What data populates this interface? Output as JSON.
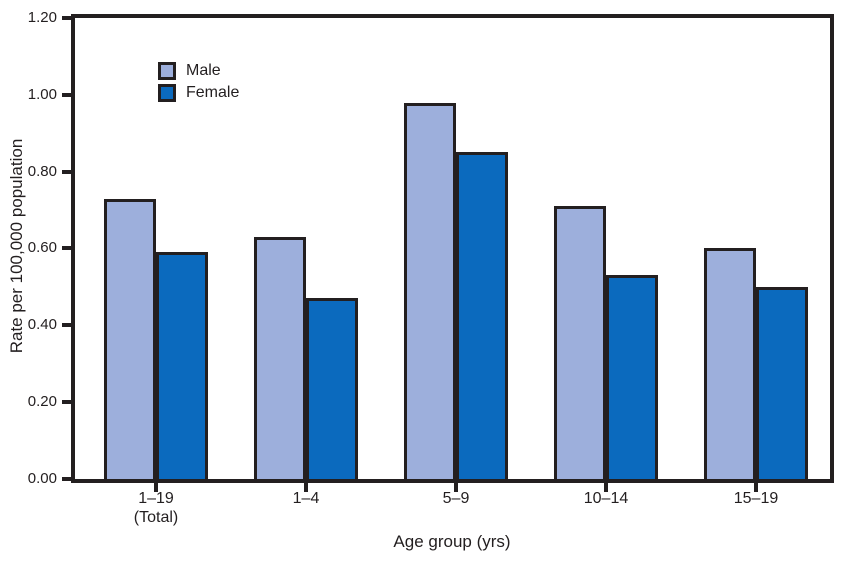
{
  "chart_data": {
    "type": "bar",
    "title": "",
    "xlabel": "Age group (yrs)",
    "ylabel": "Rate per 100,000 population",
    "ylim": [
      0,
      1.2
    ],
    "ytick_step": 0.2,
    "ytick_labels": [
      "0.00",
      "0.20",
      "0.40",
      "0.60",
      "0.80",
      "1.00",
      "1.20"
    ],
    "grid": false,
    "legend_position": "top-left-inside",
    "categories": [
      {
        "label": "1–19",
        "sublabel": "(Total)"
      },
      {
        "label": "1–4",
        "sublabel": ""
      },
      {
        "label": "5–9",
        "sublabel": ""
      },
      {
        "label": "10–14",
        "sublabel": ""
      },
      {
        "label": "15–19",
        "sublabel": ""
      }
    ],
    "series": [
      {
        "name": "Male",
        "color": "#9dafdc",
        "values": [
          0.73,
          0.63,
          0.98,
          0.71,
          0.6
        ]
      },
      {
        "name": "Female",
        "color": "#0b6abe",
        "values": [
          0.59,
          0.47,
          0.85,
          0.53,
          0.5
        ]
      }
    ]
  },
  "colors": {
    "ink": "#231f20",
    "background": "#ffffff",
    "male": "#9dafdc",
    "female": "#0b6abe"
  }
}
